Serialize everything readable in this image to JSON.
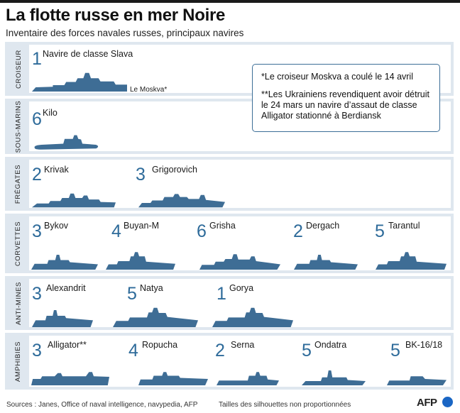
{
  "header": {
    "title": "La flotte russe en mer Noire",
    "subtitle": "Inventaire des forces navales russes, principaux navires"
  },
  "colors": {
    "ship": "#3e6d95",
    "count": "#2e6b9a",
    "panel": "#dfe7ef",
    "afp_blue": "#1a66c4"
  },
  "note": {
    "line1": "*Le croiseur Moskva a coulé le 14 avril",
    "line2": "**Les Ukrainiens revendiquent avoir détruit le 24 mars un navire d’assaut de classe Alligator stationné à Berdiansk"
  },
  "chart_data": {
    "type": "table",
    "title": "La flotte russe en mer Noire",
    "categories": [
      {
        "label": "Croiseur",
        "ships": [
          {
            "count": 1,
            "name": "Navire de classe Slava",
            "annotation": "Le Moskva*"
          }
        ]
      },
      {
        "label": "Sous-marins",
        "ships": [
          {
            "count": 6,
            "name": "Kilo"
          }
        ]
      },
      {
        "label": "Frégates",
        "ships": [
          {
            "count": 2,
            "name": "Krivak"
          },
          {
            "count": 3,
            "name": "Grigorovich"
          }
        ]
      },
      {
        "label": "Corvettes",
        "ships": [
          {
            "count": 3,
            "name": "Bykov"
          },
          {
            "count": 4,
            "name": "Buyan-M"
          },
          {
            "count": 6,
            "name": "Grisha"
          },
          {
            "count": 2,
            "name": "Dergach"
          },
          {
            "count": 5,
            "name": "Tarantul"
          }
        ]
      },
      {
        "label": "Anti-mines",
        "ships": [
          {
            "count": 3,
            "name": "Alexandrit"
          },
          {
            "count": 5,
            "name": "Natya"
          },
          {
            "count": 1,
            "name": "Gorya"
          }
        ]
      },
      {
        "label": "Amphibies",
        "ships": [
          {
            "count": 3,
            "name": "Alligator**"
          },
          {
            "count": 4,
            "name": "Ropucha"
          },
          {
            "count": 2,
            "name": "Serna"
          },
          {
            "count": 5,
            "name": "Ondatra"
          },
          {
            "count": 5,
            "name": "BK-16/18"
          }
        ]
      }
    ]
  },
  "footer": {
    "sources": "Sources : Janes, Office of naval intelligence, navypedia, AFP",
    "scale_note": "Tailles des silhouettes non proportionnées",
    "logo": "AFP"
  }
}
